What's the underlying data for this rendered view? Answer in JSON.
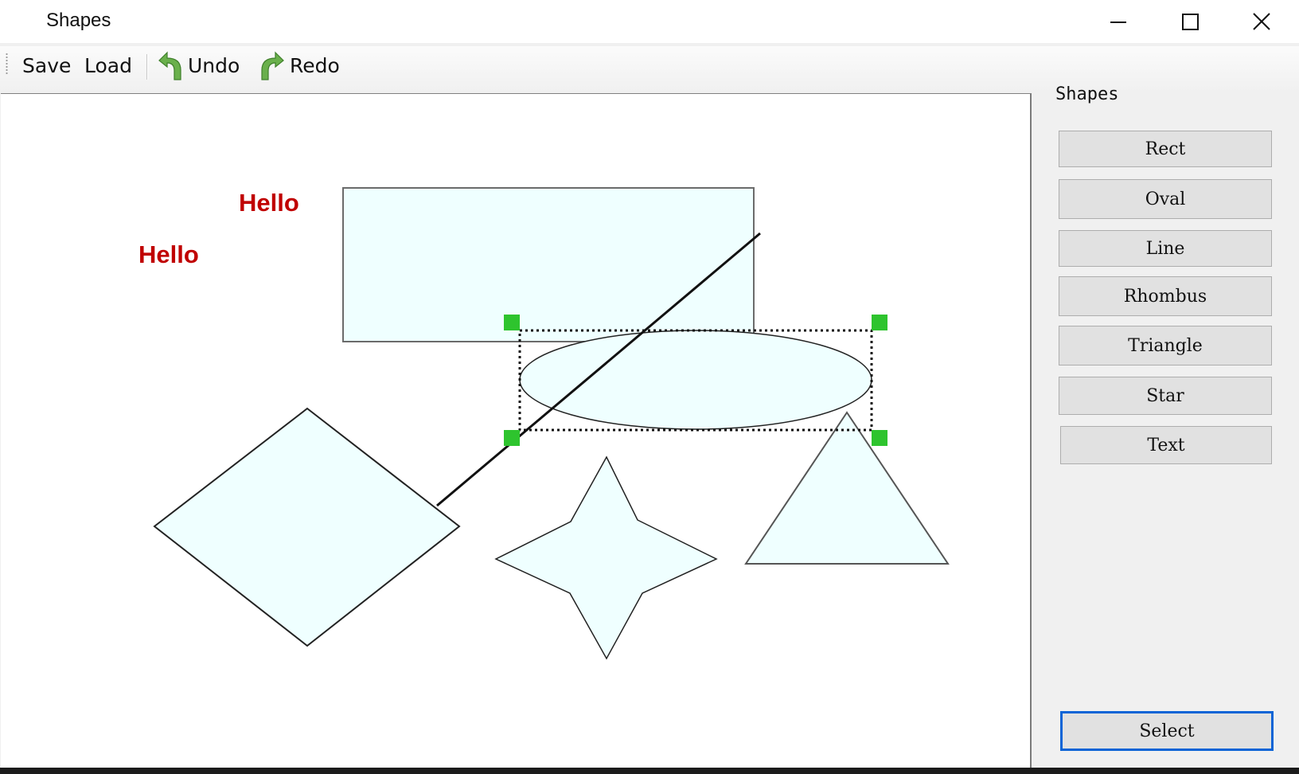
{
  "window": {
    "title": "Shapes"
  },
  "toolbar": {
    "save_label": "Save",
    "load_label": "Load",
    "undo_label": "Undo",
    "redo_label": "Redo"
  },
  "sidebar": {
    "label": "Shapes",
    "buttons": [
      {
        "label": "Rect"
      },
      {
        "label": "Oval"
      },
      {
        "label": "Line"
      },
      {
        "label": "Rhombus"
      },
      {
        "label": "Triangle"
      },
      {
        "label": "Star"
      },
      {
        "label": "Text"
      }
    ],
    "select_label": "Select",
    "active_tool": "Select"
  },
  "canvas": {
    "texts": [
      "Hello",
      "Hello"
    ],
    "text_color": "#c00000",
    "shape_fill": "#efffff",
    "selection_handle_color": "#2ec42e",
    "selected_shape": "oval"
  },
  "colors": {
    "active_border": "#0a64d6"
  },
  "icons": {
    "minimize": "minimize-icon",
    "maximize": "maximize-icon",
    "close": "close-icon",
    "undo": "undo-arrow-icon",
    "redo": "redo-arrow-icon"
  }
}
